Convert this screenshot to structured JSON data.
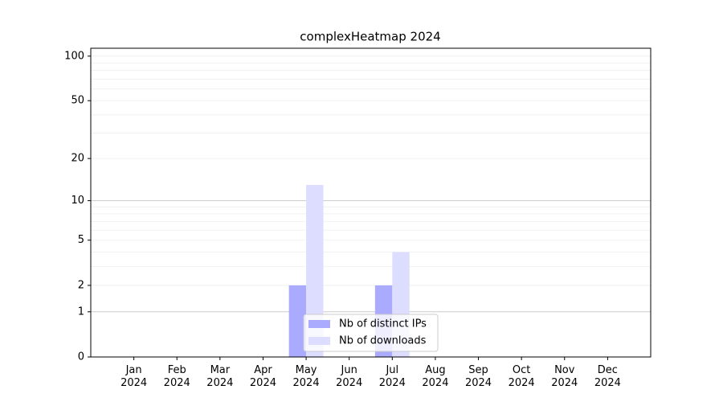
{
  "chart_data": {
    "type": "bar",
    "title": "complexHeatmap 2024",
    "categories": [
      "Jan\n2024",
      "Feb\n2024",
      "Mar\n2024",
      "Apr\n2024",
      "May\n2024",
      "Jun\n2024",
      "Jul\n2024",
      "Aug\n2024",
      "Sep\n2024",
      "Oct\n2024",
      "Nov\n2024",
      "Dec\n2024"
    ],
    "series": [
      {
        "name": "Nb of distinct IPs",
        "color": "#aaaaff",
        "values": [
          0,
          0,
          0,
          0,
          2,
          0,
          2,
          0,
          0,
          0,
          0,
          0
        ]
      },
      {
        "name": "Nb of downloads",
        "color": "#ddddff",
        "values": [
          0,
          0,
          0,
          0,
          13,
          0,
          4,
          0,
          0,
          0,
          0,
          0
        ]
      }
    ],
    "yscale": "log1p",
    "ylim": [
      0,
      113
    ],
    "yticks": [
      0,
      1,
      2,
      5,
      10,
      20,
      50,
      100
    ],
    "minor_yticks": [
      3,
      4,
      6,
      7,
      8,
      9,
      30,
      40,
      60,
      70,
      80,
      90
    ],
    "grid": true,
    "legend": "lower center"
  }
}
